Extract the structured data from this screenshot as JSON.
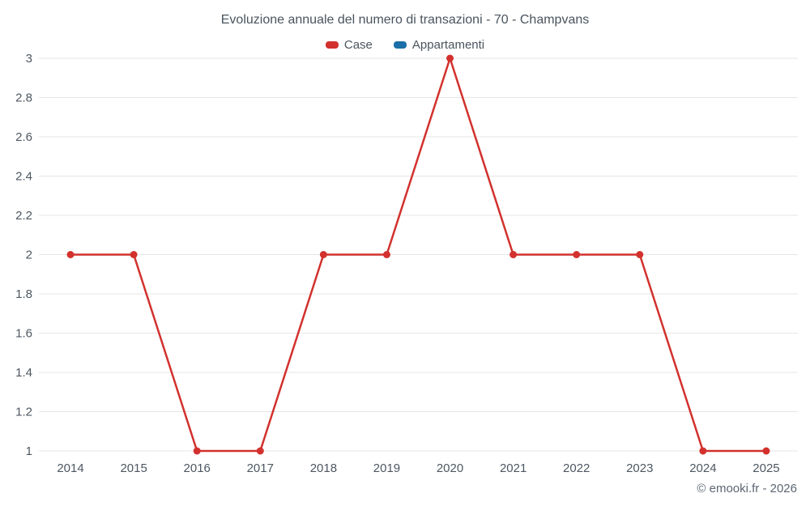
{
  "footer": "© emooki.fr - 2026",
  "chart_data": {
    "type": "line",
    "title": "Evoluzione annuale del numero di transazioni - 70 - Champvans",
    "categories": [
      "2014",
      "2015",
      "2016",
      "2017",
      "2018",
      "2019",
      "2020",
      "2021",
      "2022",
      "2023",
      "2024",
      "2025"
    ],
    "series": [
      {
        "name": "Case",
        "color": "#d2312d",
        "values": [
          2,
          2,
          1,
          1,
          2,
          2,
          3,
          2,
          2,
          2,
          1,
          1
        ]
      },
      {
        "name": "Appartamenti",
        "color": "#1a6fa8",
        "values": []
      }
    ],
    "xlabel": "",
    "ylabel": "",
    "ylim": [
      1,
      3
    ],
    "ytick_step": 0.2,
    "grid": true,
    "grid_color": "#e6e6e6",
    "legend_position": "top"
  }
}
